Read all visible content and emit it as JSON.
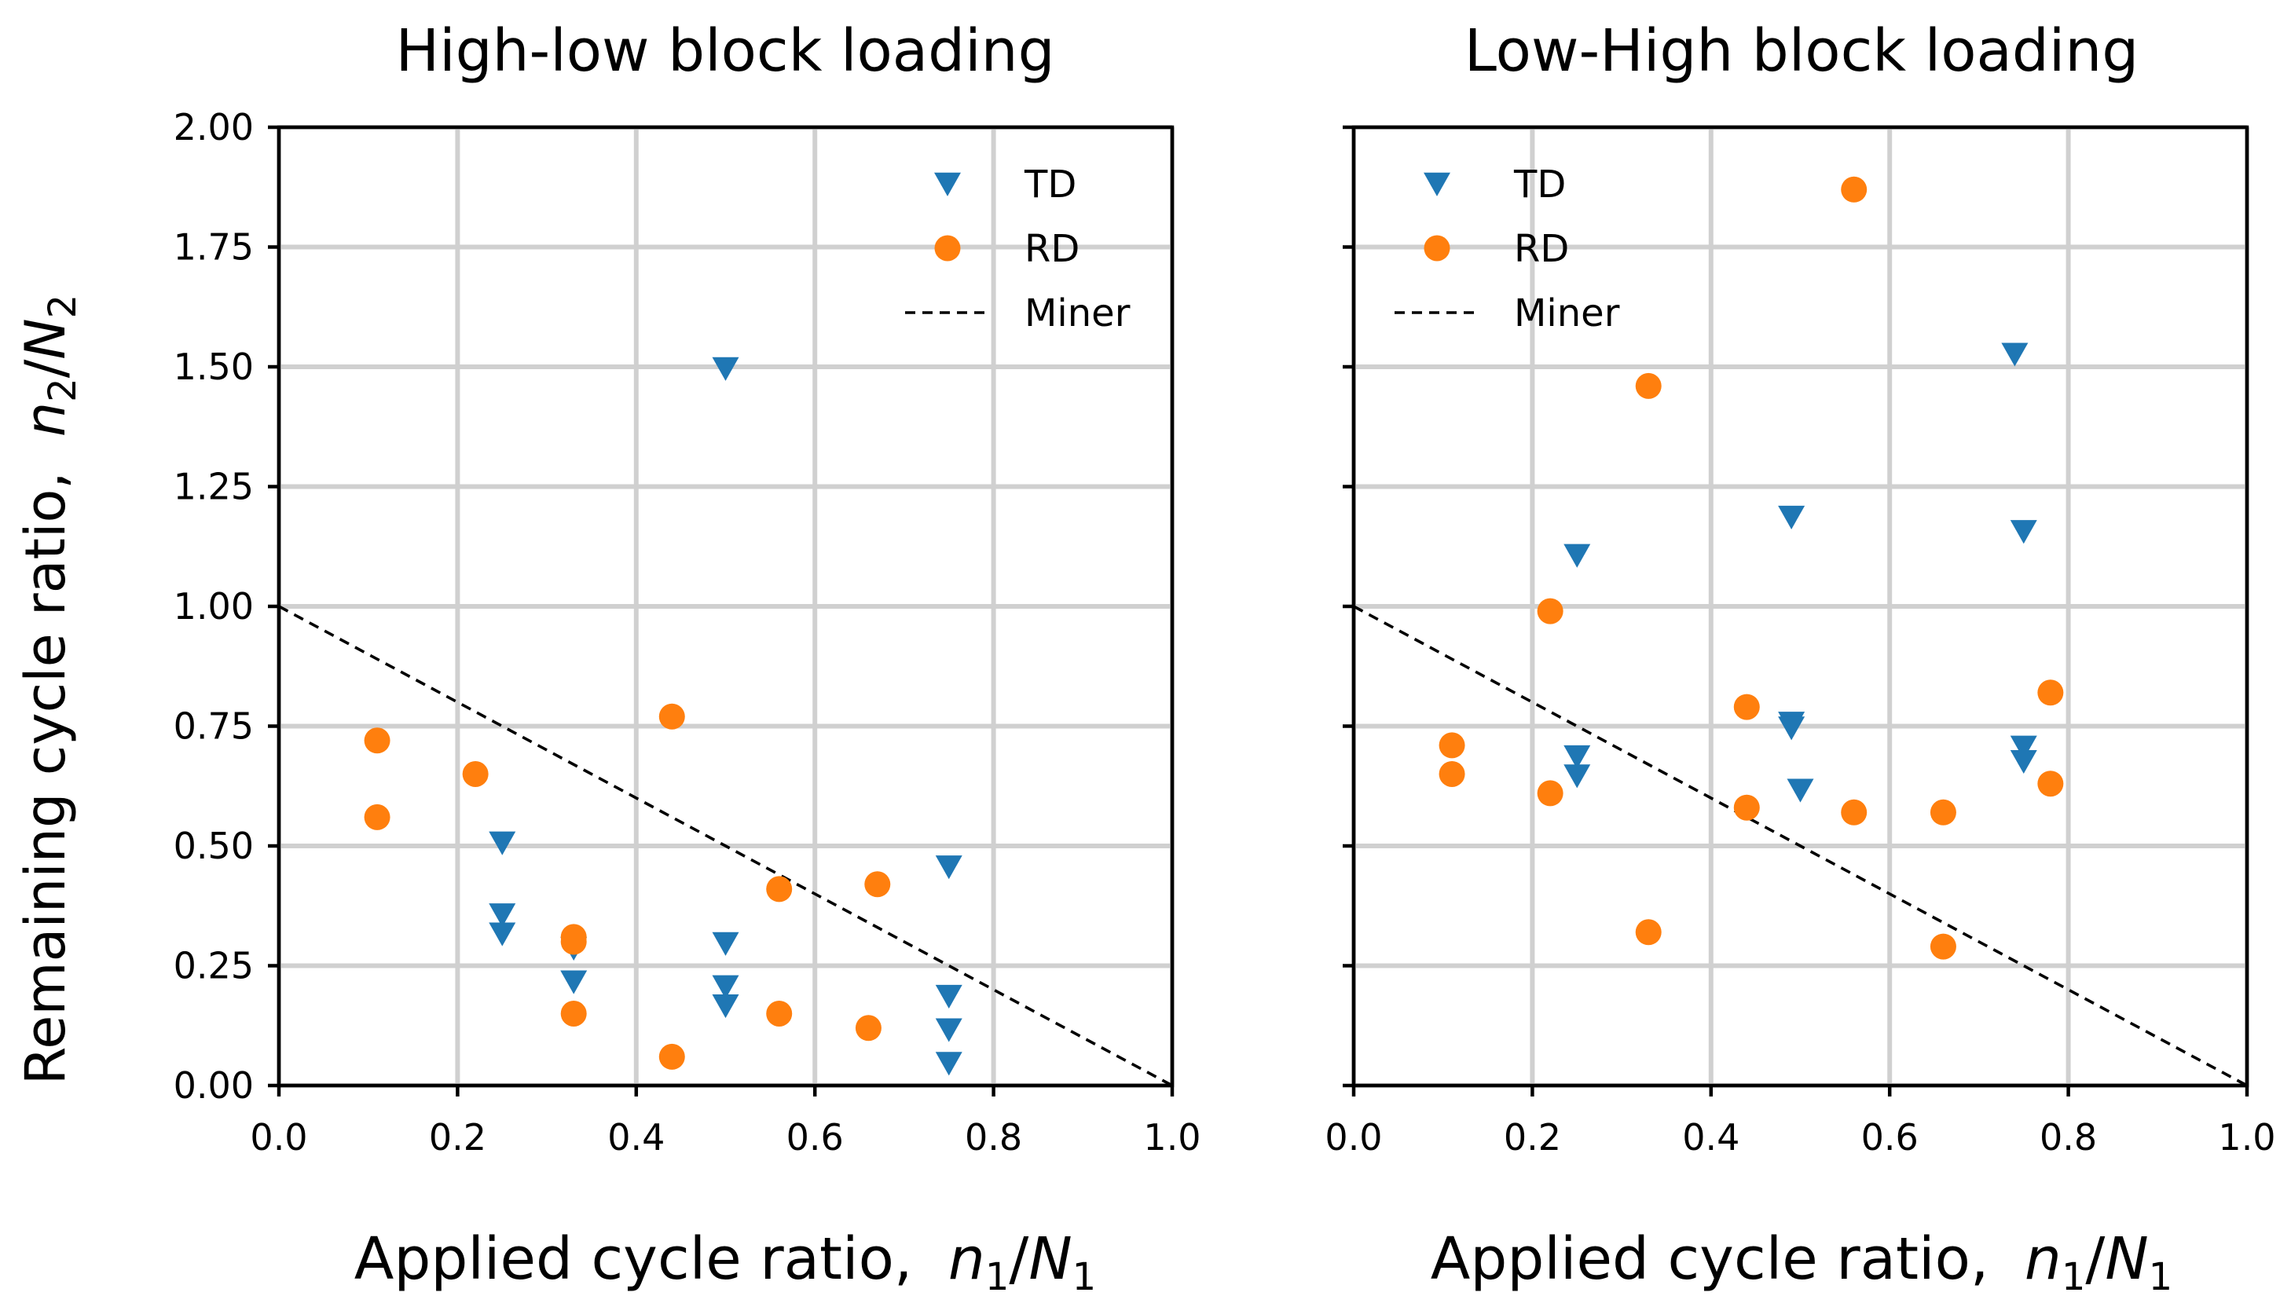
{
  "figure": {
    "ylabel": "Remaining cycle ratio,",
    "ylabel_math": {
      "var": "n",
      "sub": "2",
      "sep": "/",
      "var2": "N",
      "sub2": "2"
    },
    "xlabel": "Applied cycle ratio,",
    "xlabel_math": {
      "var": "n",
      "sub": "1",
      "sep": "/",
      "var2": "N",
      "sub2": "1"
    },
    "colors": {
      "TD": "#1f77b4",
      "RD": "#ff7f0e",
      "Miner": "#000000",
      "grid": "#d0d0d0"
    }
  },
  "chart_data": [
    {
      "type": "scatter",
      "title": "High-low block loading",
      "xlim": [
        0.0,
        1.0
      ],
      "ylim": [
        0.0,
        2.0
      ],
      "xticks": [
        "0.0",
        "0.2",
        "0.4",
        "0.6",
        "0.8",
        "1.0"
      ],
      "yticks": [
        "0.00",
        "0.25",
        "0.50",
        "0.75",
        "1.00",
        "1.25",
        "1.50",
        "1.75",
        "2.00"
      ],
      "grid": true,
      "legend_position": "top-right",
      "legend": [
        "TD",
        "RD",
        "Miner"
      ],
      "series": [
        {
          "name": "TD",
          "marker": "triangle-down",
          "color": "#1f77b4",
          "points": [
            [
              0.25,
              0.51
            ],
            [
              0.25,
              0.36
            ],
            [
              0.25,
              0.32
            ],
            [
              0.33,
              0.29
            ],
            [
              0.33,
              0.22
            ],
            [
              0.5,
              1.5
            ],
            [
              0.5,
              0.3
            ],
            [
              0.5,
              0.21
            ],
            [
              0.5,
              0.17
            ],
            [
              0.75,
              0.46
            ],
            [
              0.75,
              0.19
            ],
            [
              0.75,
              0.12
            ],
            [
              0.75,
              0.05
            ]
          ]
        },
        {
          "name": "RD",
          "marker": "circle",
          "color": "#ff7f0e",
          "points": [
            [
              0.11,
              0.72
            ],
            [
              0.11,
              0.56
            ],
            [
              0.22,
              0.65
            ],
            [
              0.33,
              0.31
            ],
            [
              0.33,
              0.3
            ],
            [
              0.33,
              0.15
            ],
            [
              0.44,
              0.77
            ],
            [
              0.44,
              0.06
            ],
            [
              0.56,
              0.41
            ],
            [
              0.56,
              0.15
            ],
            [
              0.66,
              0.12
            ],
            [
              0.67,
              0.42
            ]
          ]
        },
        {
          "name": "Miner",
          "line": "dashed",
          "color": "#000000",
          "points": [
            [
              0.0,
              1.0
            ],
            [
              1.0,
              0.0
            ]
          ]
        }
      ]
    },
    {
      "type": "scatter",
      "title": "Low-High block loading",
      "xlim": [
        0.0,
        1.0
      ],
      "ylim": [
        0.0,
        2.0
      ],
      "xticks": [
        "0.0",
        "0.2",
        "0.4",
        "0.6",
        "0.8",
        "1.0"
      ],
      "yticks": [
        "0.00",
        "0.25",
        "0.50",
        "0.75",
        "1.00",
        "1.25",
        "1.50",
        "1.75",
        "2.00"
      ],
      "grid": true,
      "legend_position": "top-left",
      "legend": [
        "TD",
        "RD",
        "Miner"
      ],
      "series": [
        {
          "name": "TD",
          "marker": "triangle-down",
          "color": "#1f77b4",
          "points": [
            [
              0.25,
              1.11
            ],
            [
              0.25,
              0.69
            ],
            [
              0.25,
              0.65
            ],
            [
              0.49,
              1.19
            ],
            [
              0.49,
              0.76
            ],
            [
              0.49,
              0.75
            ],
            [
              0.5,
              0.62
            ],
            [
              0.74,
              1.53
            ],
            [
              0.75,
              1.16
            ],
            [
              0.75,
              0.71
            ],
            [
              0.75,
              0.68
            ]
          ]
        },
        {
          "name": "RD",
          "marker": "circle",
          "color": "#ff7f0e",
          "points": [
            [
              0.11,
              0.71
            ],
            [
              0.11,
              0.65
            ],
            [
              0.22,
              0.99
            ],
            [
              0.22,
              0.61
            ],
            [
              0.33,
              1.46
            ],
            [
              0.33,
              0.32
            ],
            [
              0.44,
              0.79
            ],
            [
              0.44,
              0.58
            ],
            [
              0.56,
              1.87
            ],
            [
              0.56,
              0.57
            ],
            [
              0.66,
              0.57
            ],
            [
              0.66,
              0.29
            ],
            [
              0.78,
              0.82
            ],
            [
              0.78,
              0.63
            ]
          ]
        },
        {
          "name": "Miner",
          "line": "dashed",
          "color": "#000000",
          "points": [
            [
              0.0,
              1.0
            ],
            [
              1.0,
              0.0
            ]
          ]
        }
      ]
    }
  ]
}
